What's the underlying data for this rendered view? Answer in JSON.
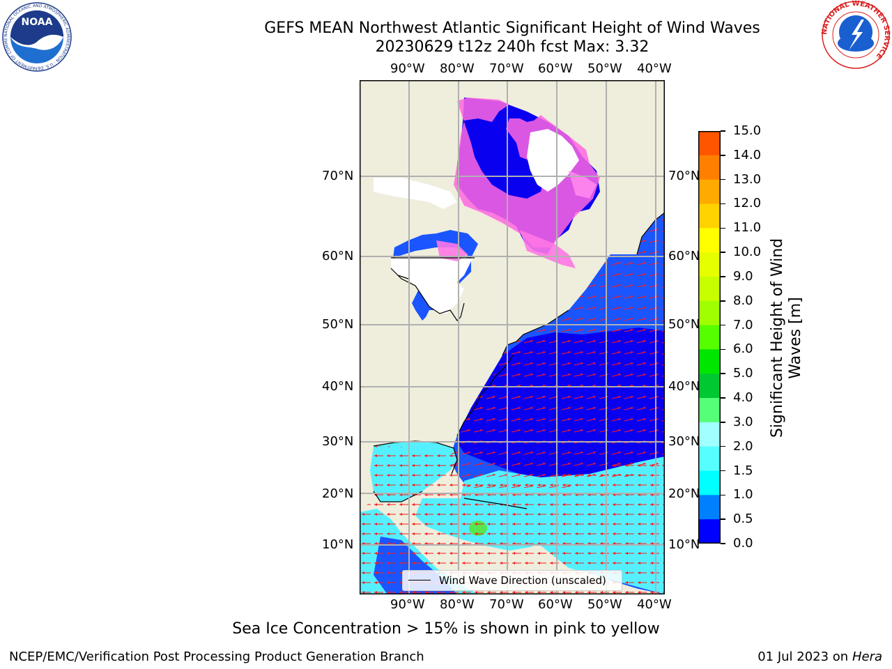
{
  "header": {
    "title_line1": "GEFS MEAN Northwest Atlantic Significant Height of Wind Waves",
    "title_line2": "20230629 t12z 240h fcst   Max: 3.32"
  },
  "map": {
    "top_lon_labels": [
      "90°W",
      "80°W",
      "70°W",
      "60°W",
      "50°W",
      "40°W"
    ],
    "bottom_lon_labels": [
      "90°W",
      "80°W",
      "70°W",
      "60°W",
      "50°W",
      "40°W"
    ],
    "lat_labels": [
      "70°N",
      "60°N",
      "50°N",
      "40°N",
      "30°N",
      "20°N",
      "10°N"
    ],
    "legend": {
      "text": "Wind Wave Direction (unscaled)"
    },
    "colors": {
      "land": "#efeddc",
      "ice": "#ffffff",
      "grid": "#b0b0b0",
      "arrow": "#ff1a1a"
    }
  },
  "colorbar": {
    "label": "Significant Height of Wind Waves [m]",
    "label_line1": "Significant Height of Wind",
    "label_line2": "Waves [m]",
    "ticks": [
      "15.0",
      "14.0",
      "13.0",
      "12.0",
      "11.0",
      "10.0",
      "9.0",
      "8.0",
      "7.0",
      "6.0",
      "5.0",
      "4.0",
      "3.0",
      "2.0",
      "1.5",
      "1.0",
      "0.5",
      "0.0"
    ],
    "colors_top_to_bottom": [
      "#ff0000",
      "#ff2a00",
      "#ff5500",
      "#ff8000",
      "#ffaa00",
      "#ffd200",
      "#ffff00",
      "#e6ff00",
      "#c8ff00",
      "#a0ff00",
      "#55ff00",
      "#00e600",
      "#00c832",
      "#55ff78",
      "#a0ffff",
      "#55ffff",
      "#00ffff",
      "#0080ff",
      "#0000ff"
    ]
  },
  "notes": {
    "sea_ice": "Sea Ice Concentration > 15% is shown in pink to yellow"
  },
  "footer": {
    "left": "NCEP/EMC/Verification Post Processing Product Generation Branch",
    "right_prefix": "01 Jul 2023 on ",
    "right_host": "Hera"
  },
  "logos": {
    "noaa_text": "NOAA",
    "noaa_ring_text": "NATIONAL OCEANIC AND ATMOSPHERIC ADMINISTRATION · U.S. DEPARTMENT OF COMMERCE",
    "nws_ring_text": "NATIONAL WEATHER SERVICE"
  }
}
